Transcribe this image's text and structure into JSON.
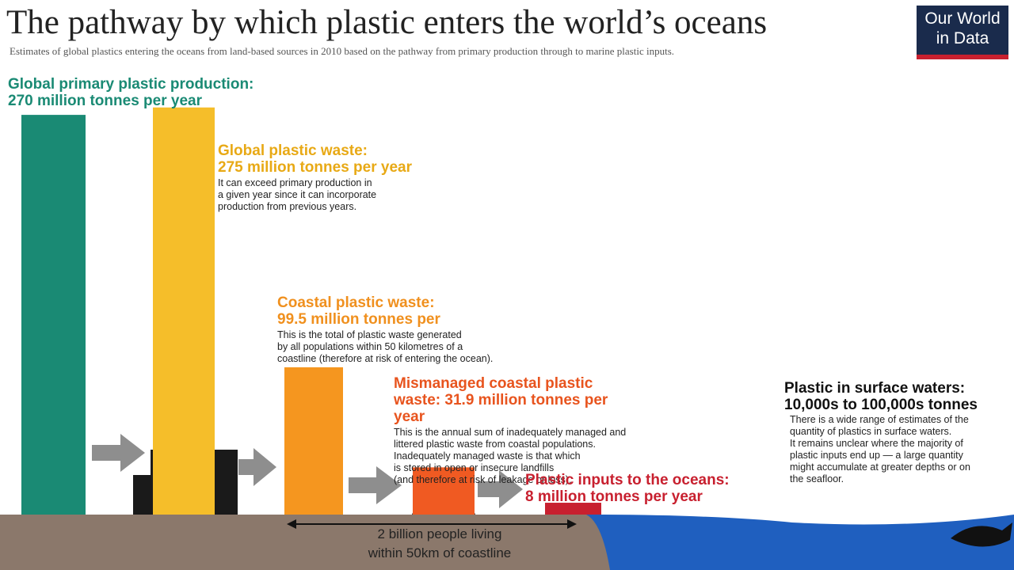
{
  "chart_data": {
    "type": "bar",
    "title": "The pathway by which plastic enters the world’s oceans",
    "subtitle": "Estimates of global plastics entering the oceans from land-based sources in 2010 based on the pathway from primary production through to marine plastic inputs.",
    "logo": [
      "Our World",
      "in Data"
    ],
    "categories": [
      "Global primary plastic production:",
      "Global plastic waste:",
      "Coastal plastic waste:",
      "Mismanaged coastal plastic waste:",
      "Plastic inputs to the oceans:"
    ],
    "values": [
      270,
      275,
      99.5,
      31.9,
      8
    ],
    "value_labels": [
      "270 million tonnes per year",
      "275 million tonnes per year",
      "99.5 million tonnes per",
      "31.9 million tonnes per year",
      "8 million tonnes per year"
    ],
    "colors": [
      "#1a8a74",
      "#f5be2a",
      "#f5961f",
      "#f05a22",
      "#c8202f"
    ],
    "label_colors": [
      "#1a8a74",
      "#e8a915",
      "#f0901e",
      "#e8541e",
      "#c8202f"
    ],
    "descriptions": [
      [],
      [
        "It can exceed primary production in",
        "a given year since it can incorporate",
        "production from previous years."
      ],
      [
        "This is the total of plastic waste generated",
        "by all populations within 50 kilometres of a",
        "coastline (therefore at risk of entering the ocean)."
      ],
      [
        "This is the annual sum of inadequately managed and",
        "littered plastic waste from coastal populations.",
        "Inadequately managed waste is that which",
        "is stored in open or insecure landfills",
        "(and therefore at risk of leakage or loss)."
      ],
      []
    ],
    "surface_heading": [
      "Plastic in surface waters:",
      "10,000s to 100,000s tonnes"
    ],
    "surface_description": [
      "There is a wide range of estimates of the",
      "quantity of plastics in surface waters.",
      "It remains unclear where the majority of",
      "plastic inputs end up — a large quantity",
      "might accumulate at greater depths or on",
      "the seafloor."
    ],
    "coastline_note": [
      "2 billion people living",
      "within 50km of coastline"
    ]
  }
}
